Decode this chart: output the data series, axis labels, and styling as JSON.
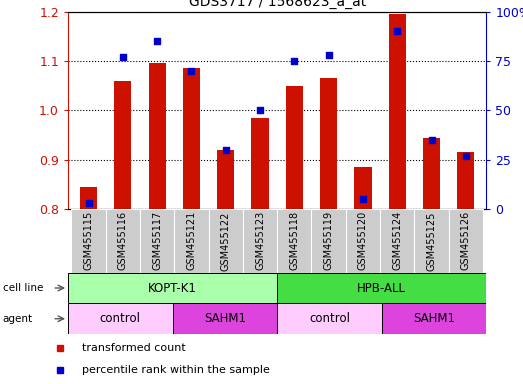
{
  "title": "GDS3717 / 1568623_a_at",
  "samples": [
    "GSM455115",
    "GSM455116",
    "GSM455117",
    "GSM455121",
    "GSM455122",
    "GSM455123",
    "GSM455118",
    "GSM455119",
    "GSM455120",
    "GSM455124",
    "GSM455125",
    "GSM455126"
  ],
  "red_values": [
    0.845,
    1.06,
    1.095,
    1.085,
    0.92,
    0.985,
    1.05,
    1.065,
    0.885,
    1.195,
    0.945,
    0.915
  ],
  "blue_values_pct": [
    3,
    77,
    85,
    70,
    30,
    50,
    75,
    78,
    5,
    90,
    35,
    27
  ],
  "ylim_left": [
    0.8,
    1.2
  ],
  "ylim_right": [
    0,
    100
  ],
  "yticks_left": [
    0.8,
    0.9,
    1.0,
    1.1,
    1.2
  ],
  "yticks_right": [
    0,
    25,
    50,
    75,
    100
  ],
  "ytick_labels_right": [
    "0",
    "25",
    "50",
    "75",
    "100%"
  ],
  "cell_line_groups": [
    {
      "label": "KOPT-K1",
      "start": 0,
      "end": 6,
      "color": "#aaffaa"
    },
    {
      "label": "HPB-ALL",
      "start": 6,
      "end": 12,
      "color": "#44dd44"
    }
  ],
  "agent_groups": [
    {
      "label": "control",
      "start": 0,
      "end": 3,
      "color": "#ffccff"
    },
    {
      "label": "SAHM1",
      "start": 3,
      "end": 6,
      "color": "#dd44dd"
    },
    {
      "label": "control",
      "start": 6,
      "end": 9,
      "color": "#ffccff"
    },
    {
      "label": "SAHM1",
      "start": 9,
      "end": 12,
      "color": "#dd44dd"
    }
  ],
  "bar_color": "#cc1100",
  "marker_color": "#0000cc",
  "bar_width": 0.5,
  "background_color": "#ffffff",
  "xtick_bg_color": "#cccccc",
  "legend_items": [
    {
      "label": "transformed count",
      "color": "#cc1100"
    },
    {
      "label": "percentile rank within the sample",
      "color": "#0000cc"
    }
  ],
  "left_label_color": "#cc1100",
  "right_label_color": "#0000cc"
}
